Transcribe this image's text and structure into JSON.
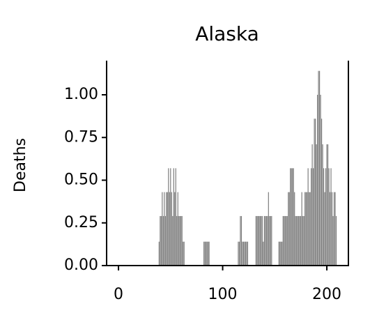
{
  "chart_data": {
    "type": "bar",
    "title": "Alaska",
    "y_label": "Deaths",
    "color": "#808080",
    "x": [
      0,
      1,
      2,
      3,
      4,
      5,
      6,
      7,
      8,
      9,
      10,
      11,
      12,
      13,
      14,
      15,
      16,
      17,
      18,
      19,
      20,
      21,
      22,
      23,
      24,
      25,
      26,
      27,
      28,
      29,
      30,
      31,
      32,
      33,
      34,
      35,
      36,
      37,
      38,
      39,
      40,
      41,
      42,
      43,
      44,
      45,
      46,
      47,
      48,
      49,
      50,
      51,
      52,
      53,
      54,
      55,
      56,
      57,
      58,
      59,
      60,
      61,
      62,
      63,
      64,
      65,
      66,
      67,
      68,
      69,
      70,
      71,
      72,
      73,
      74,
      75,
      76,
      77,
      78,
      79,
      80,
      81,
      82,
      83,
      84,
      85,
      86,
      87,
      88,
      89,
      90,
      91,
      92,
      93,
      94,
      95,
      96,
      97,
      98,
      99,
      100,
      101,
      102,
      103,
      104,
      105,
      106,
      107,
      108,
      109,
      110,
      111,
      112,
      113,
      114,
      115,
      116,
      117,
      118,
      119,
      120,
      121,
      122,
      123,
      124,
      125,
      126,
      127,
      128,
      129,
      130,
      131,
      132,
      133,
      134,
      135,
      136,
      137,
      138,
      139,
      140,
      141,
      142,
      143,
      144,
      145,
      146,
      147,
      148,
      149,
      150,
      151,
      152,
      153,
      154,
      155,
      156,
      157,
      158,
      159,
      160,
      161,
      162,
      163,
      164,
      165,
      166,
      167,
      168,
      169,
      170,
      171,
      172,
      173,
      174,
      175,
      176,
      177,
      178,
      179,
      180,
      181,
      182,
      183,
      184,
      185,
      186,
      187,
      188,
      189,
      190,
      191,
      192,
      193,
      194,
      195,
      196,
      197,
      198,
      199,
      200,
      201,
      202,
      203,
      204,
      205,
      206,
      207,
      208,
      209
    ],
    "values": [
      0,
      0,
      0,
      0,
      0,
      0,
      0,
      0,
      0,
      0,
      0,
      0,
      0,
      0,
      0,
      0,
      0,
      0,
      0,
      0,
      0,
      0,
      0,
      0,
      0,
      0,
      0,
      0,
      0,
      0,
      0,
      0,
      0,
      0,
      0,
      0,
      0,
      0,
      0,
      0.14,
      0.29,
      0.29,
      0.43,
      0.29,
      0.43,
      0.29,
      0.43,
      0.43,
      0.57,
      0.43,
      0.57,
      0.43,
      0.29,
      0.57,
      0.43,
      0.57,
      0.29,
      0.43,
      0.29,
      0.29,
      0.29,
      0.29,
      0.14,
      0.14,
      0,
      0,
      0,
      0,
      0,
      0,
      0,
      0,
      0,
      0,
      0,
      0,
      0,
      0,
      0,
      0,
      0,
      0,
      0.14,
      0.14,
      0.14,
      0.14,
      0.14,
      0.14,
      0,
      0,
      0,
      0,
      0,
      0,
      0,
      0,
      0,
      0,
      0,
      0,
      0,
      0,
      0,
      0,
      0,
      0,
      0,
      0,
      0,
      0,
      0,
      0,
      0,
      0,
      0,
      0.14,
      0.14,
      0.29,
      0.29,
      0.14,
      0.14,
      0.14,
      0.14,
      0.14,
      0.14,
      0,
      0,
      0,
      0,
      0,
      0,
      0,
      0.29,
      0.29,
      0.29,
      0.29,
      0.29,
      0.29,
      0.29,
      0.14,
      0.29,
      0.29,
      0.29,
      0.29,
      0.43,
      0.29,
      0.29,
      0.29,
      0,
      0,
      0,
      0,
      0,
      0,
      0.14,
      0.14,
      0.14,
      0.14,
      0.29,
      0.29,
      0.29,
      0.29,
      0.29,
      0.43,
      0.43,
      0.57,
      0.57,
      0.57,
      0.57,
      0.43,
      0.29,
      0.29,
      0.29,
      0.29,
      0.29,
      0.29,
      0.43,
      0.29,
      0.29,
      0.43,
      0.43,
      0.43,
      0.57,
      0.43,
      0.43,
      0.57,
      0.71,
      0.57,
      0.86,
      0.86,
      0.71,
      1.0,
      1.14,
      1.14,
      1.0,
      0.86,
      0.71,
      0.57,
      0.43,
      0.57,
      0.71,
      0.71,
      0.57,
      0.43,
      0.57,
      0.43,
      0.29,
      0.43,
      0.43,
      0.29
    ],
    "xlim": [
      -11.4,
      220.7
    ],
    "xticks": [
      0,
      100,
      200
    ],
    "ylim": [
      0,
      1.2
    ],
    "yticks": [
      {
        "value": 0,
        "label": "0.00"
      },
      {
        "value": 0.25,
        "label": "0.25"
      },
      {
        "value": 0.5,
        "label": "0.50"
      },
      {
        "value": 0.75,
        "label": "0.75"
      },
      {
        "value": 1.0,
        "label": "1.00"
      }
    ]
  }
}
